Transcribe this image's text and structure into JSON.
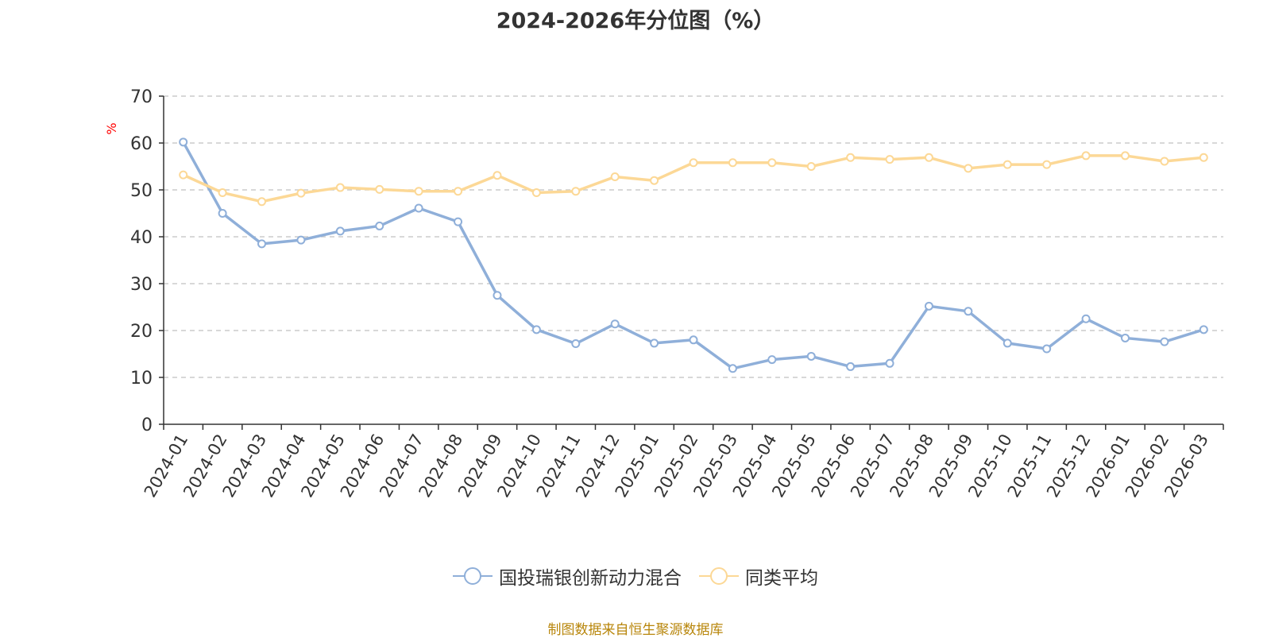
{
  "chart_data": {
    "type": "line",
    "title": "2024-2026年分位图（%）",
    "ylabel": "%",
    "xlabel": "",
    "ylim": [
      0,
      70
    ],
    "yticks": [
      0,
      10,
      20,
      30,
      40,
      50,
      60,
      70
    ],
    "grid": true,
    "legend_position": "bottom",
    "categories": [
      "2024-01",
      "2024-02",
      "2024-03",
      "2024-04",
      "2024-05",
      "2024-06",
      "2024-07",
      "2024-08",
      "2024-09",
      "2024-10",
      "2024-11",
      "2024-12",
      "2025-01",
      "2025-02",
      "2025-03",
      "2025-04",
      "2025-05",
      "2025-06",
      "2025-07",
      "2025-08",
      "2025-09",
      "2025-10",
      "2025-11",
      "2025-12",
      "2026-01",
      "2026-02",
      "2026-03"
    ],
    "series": [
      {
        "name": "国投瑞银创新动力混合",
        "color": "#8fafd9",
        "values": [
          60.2,
          45.0,
          38.5,
          39.3,
          41.2,
          42.3,
          46.1,
          43.2,
          27.5,
          20.2,
          17.2,
          21.4,
          17.3,
          18.0,
          11.9,
          13.8,
          14.5,
          12.3,
          13.0,
          25.2,
          24.1,
          17.3,
          16.1,
          22.5,
          18.4,
          17.6,
          20.2
        ]
      },
      {
        "name": "同类平均",
        "color": "#fcd896",
        "values": [
          53.2,
          49.4,
          47.5,
          49.3,
          50.5,
          50.1,
          49.7,
          49.7,
          53.1,
          49.4,
          49.7,
          52.8,
          52.0,
          55.8,
          55.8,
          55.8,
          55.0,
          56.9,
          56.5,
          56.9,
          54.6,
          55.4,
          55.4,
          57.3,
          57.3,
          56.1,
          56.9
        ]
      }
    ]
  },
  "source_text": "制图数据来自恒生聚源数据库"
}
